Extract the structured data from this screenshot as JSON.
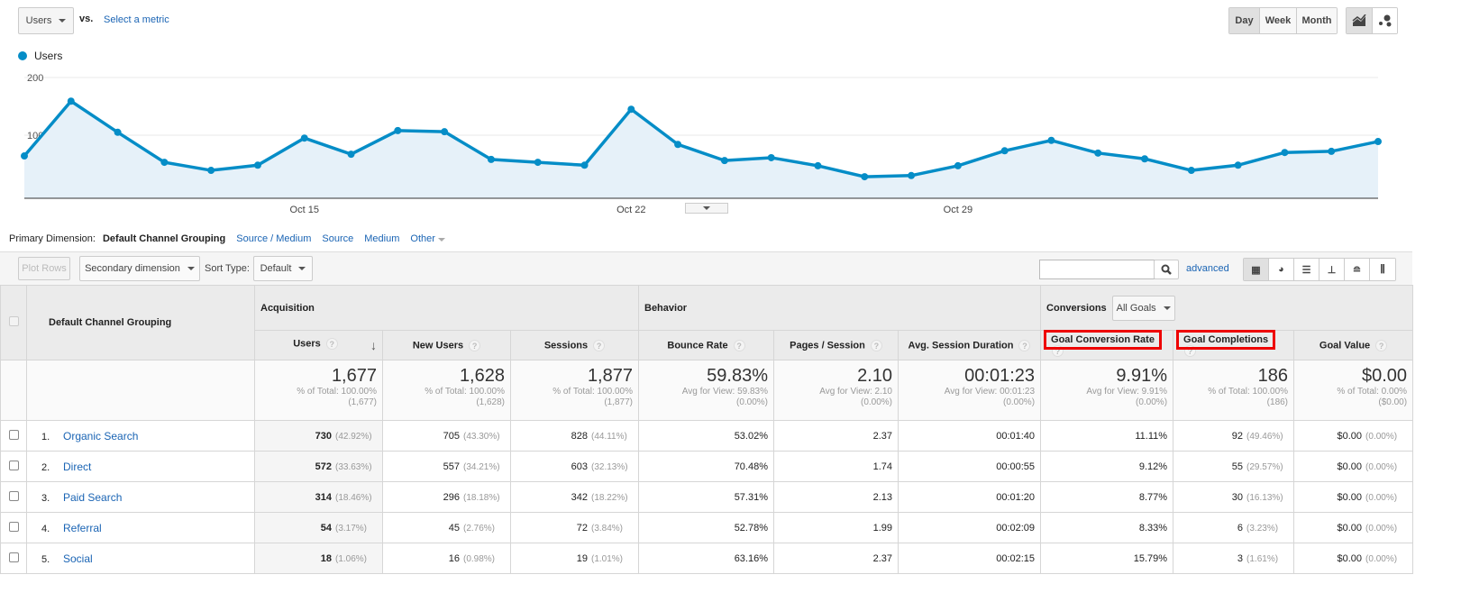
{
  "toolbar": {
    "metric": "Users",
    "vs": "vs.",
    "select_metric": "Select a metric",
    "periods": [
      "Day",
      "Week",
      "Month"
    ],
    "active_period": "Day"
  },
  "chart_data": {
    "type": "area",
    "series": [
      {
        "name": "Users",
        "color": "#058dc7",
        "values": [
          64,
          159,
          105,
          53,
          39,
          48,
          95,
          67,
          108,
          106,
          58,
          53,
          48,
          145,
          84,
          56,
          61,
          47,
          28,
          30,
          47,
          73,
          91,
          69,
          59,
          39,
          48,
          70,
          72,
          89
        ]
      }
    ],
    "x_tick_labels": [
      "Oct 15",
      "Oct 22",
      "Oct 29"
    ],
    "y_ticks": [
      100,
      200
    ],
    "ylim": [
      0,
      200
    ],
    "legend": "top-left",
    "grid": true
  },
  "dimensions": {
    "label": "Primary Dimension:",
    "active": "Default Channel Grouping",
    "options": [
      "Source / Medium",
      "Source",
      "Medium"
    ],
    "other": "Other"
  },
  "controls": {
    "plot_rows": "Plot Rows",
    "secondary": "Secondary dimension",
    "sort_label": "Sort Type:",
    "sort_value": "Default",
    "search_placeholder": "",
    "advanced": "advanced"
  },
  "table": {
    "dim_header": "Default Channel Grouping",
    "groups": {
      "acq": "Acquisition",
      "beh": "Behavior",
      "conv": "Conversions",
      "goal_select": "All Goals"
    },
    "columns": [
      "Users",
      "New Users",
      "Sessions",
      "Bounce Rate",
      "Pages / Session",
      "Avg. Session Duration",
      "Goal Conversion Rate",
      "Goal Completions",
      "Goal Value"
    ],
    "totals": [
      {
        "v": "1,677",
        "s1": "% of Total: 100.00%",
        "s2": "(1,677)"
      },
      {
        "v": "1,628",
        "s1": "% of Total: 100.00%",
        "s2": "(1,628)"
      },
      {
        "v": "1,877",
        "s1": "% of Total: 100.00%",
        "s2": "(1,877)"
      },
      {
        "v": "59.83%",
        "s1": "Avg for View: 59.83%",
        "s2": "(0.00%)"
      },
      {
        "v": "2.10",
        "s1": "Avg for View: 2.10",
        "s2": "(0.00%)"
      },
      {
        "v": "00:01:23",
        "s1": "Avg for View: 00:01:23",
        "s2": "(0.00%)"
      },
      {
        "v": "9.91%",
        "s1": "Avg for View: 9.91%",
        "s2": "(0.00%)"
      },
      {
        "v": "186",
        "s1": "% of Total: 100.00%",
        "s2": "(186)"
      },
      {
        "v": "$0.00",
        "s1": "% of Total: 0.00%",
        "s2": "($0.00)"
      }
    ],
    "rows": [
      {
        "n": "1.",
        "name": "Organic Search",
        "users": "730",
        "users_p": "(42.92%)",
        "new": "705",
        "new_p": "(43.30%)",
        "sess": "828",
        "sess_p": "(44.11%)",
        "bounce": "53.02%",
        "pps": "2.37",
        "dur": "00:01:40",
        "gcr": "11.11%",
        "gc": "92",
        "gc_p": "(49.46%)",
        "gv": "$0.00",
        "gv_p": "(0.00%)"
      },
      {
        "n": "2.",
        "name": "Direct",
        "users": "572",
        "users_p": "(33.63%)",
        "new": "557",
        "new_p": "(34.21%)",
        "sess": "603",
        "sess_p": "(32.13%)",
        "bounce": "70.48%",
        "pps": "1.74",
        "dur": "00:00:55",
        "gcr": "9.12%",
        "gc": "55",
        "gc_p": "(29.57%)",
        "gv": "$0.00",
        "gv_p": "(0.00%)"
      },
      {
        "n": "3.",
        "name": "Paid Search",
        "users": "314",
        "users_p": "(18.46%)",
        "new": "296",
        "new_p": "(18.18%)",
        "sess": "342",
        "sess_p": "(18.22%)",
        "bounce": "57.31%",
        "pps": "2.13",
        "dur": "00:01:20",
        "gcr": "8.77%",
        "gc": "30",
        "gc_p": "(16.13%)",
        "gv": "$0.00",
        "gv_p": "(0.00%)"
      },
      {
        "n": "4.",
        "name": "Referral",
        "users": "54",
        "users_p": "(3.17%)",
        "new": "45",
        "new_p": "(2.76%)",
        "sess": "72",
        "sess_p": "(3.84%)",
        "bounce": "52.78%",
        "pps": "1.99",
        "dur": "00:02:09",
        "gcr": "8.33%",
        "gc": "6",
        "gc_p": "(3.23%)",
        "gv": "$0.00",
        "gv_p": "(0.00%)"
      },
      {
        "n": "5.",
        "name": "Social",
        "users": "18",
        "users_p": "(1.06%)",
        "new": "16",
        "new_p": "(0.98%)",
        "sess": "19",
        "sess_p": "(1.01%)",
        "bounce": "63.16%",
        "pps": "2.37",
        "dur": "00:02:15",
        "gcr": "15.79%",
        "gc": "3",
        "gc_p": "(1.61%)",
        "gv": "$0.00",
        "gv_p": "(0.00%)"
      }
    ]
  }
}
